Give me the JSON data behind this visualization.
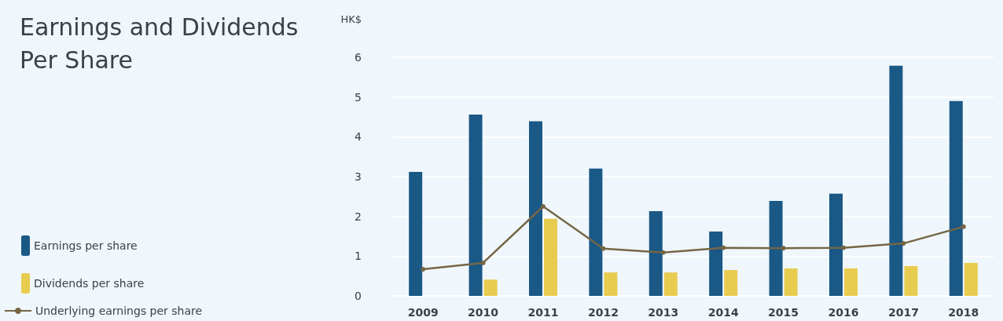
{
  "chart_data": {
    "type": "bar",
    "title": "Earnings and Dividends\nPer Share",
    "ylabel": "HK$",
    "categories": [
      "2009",
      "2010",
      "2011",
      "2012",
      "2013",
      "2014",
      "2015",
      "2016",
      "2017",
      "2018"
    ],
    "series": [
      {
        "name": "Earnings per share",
        "color": "#1a5886",
        "values": [
          3.12,
          4.56,
          4.39,
          3.2,
          2.13,
          1.62,
          2.39,
          2.57,
          5.79,
          4.9
        ]
      },
      {
        "name": "Dividends per share",
        "color": "#e8cc50",
        "values": [
          null,
          0.41,
          1.94,
          0.59,
          0.59,
          0.65,
          0.69,
          0.69,
          0.75,
          0.83
        ]
      },
      {
        "name": "Underlying earnings per share",
        "type": "line",
        "color": "#756645",
        "marker": "circle",
        "values": [
          0.67,
          0.83,
          2.25,
          1.19,
          1.09,
          1.21,
          1.2,
          1.21,
          1.32,
          1.74
        ]
      }
    ],
    "ylim": [
      0,
      6
    ],
    "yticks": [
      0,
      1,
      2,
      3,
      4,
      5,
      6
    ],
    "grid": "y",
    "legend": "bottom left"
  }
}
